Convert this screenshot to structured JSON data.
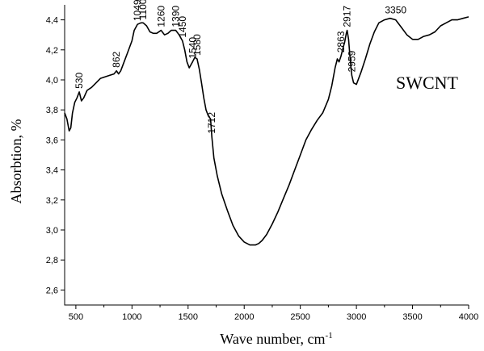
{
  "chart_data": {
    "type": "line",
    "xlabel": "Wave number, cm",
    "xlabel_sup": "-1",
    "ylabel": "Absorbtion, %",
    "xlim": [
      400,
      4000
    ],
    "ylim": [
      2.5,
      4.5
    ],
    "x_ticks": [
      500,
      1000,
      1500,
      2000,
      2500,
      3000,
      3500,
      4000
    ],
    "y_ticks": [
      "2,6",
      "2,8",
      "3,0",
      "3,2",
      "3,4",
      "3,6",
      "3,8",
      "4,0",
      "4,2",
      "4,4"
    ],
    "y_tick_values": [
      2.6,
      2.8,
      3.0,
      3.2,
      3.4,
      3.6,
      3.8,
      4.0,
      4.2,
      4.4
    ],
    "grid": false,
    "legend": "none",
    "series": [
      {
        "name": "SWCNT",
        "color": "#000000",
        "x": [
          400,
          420,
          440,
          455,
          470,
          490,
          510,
          530,
          550,
          570,
          600,
          640,
          680,
          720,
          760,
          800,
          840,
          862,
          880,
          900,
          930,
          960,
          1000,
          1020,
          1049,
          1080,
          1100,
          1130,
          1160,
          1190,
          1220,
          1260,
          1290,
          1320,
          1350,
          1390,
          1420,
          1450,
          1470,
          1490,
          1510,
          1540,
          1560,
          1580,
          1600,
          1620,
          1640,
          1660,
          1680,
          1700,
          1712,
          1730,
          1760,
          1800,
          1850,
          1900,
          1950,
          2000,
          2050,
          2100,
          2130,
          2160,
          2200,
          2250,
          2300,
          2350,
          2400,
          2450,
          2500,
          2550,
          2600,
          2650,
          2700,
          2750,
          2780,
          2810,
          2830,
          2845,
          2863,
          2880,
          2895,
          2910,
          2917,
          2930,
          2945,
          2959,
          2975,
          3000,
          3040,
          3080,
          3120,
          3160,
          3200,
          3250,
          3300,
          3350,
          3400,
          3450,
          3500,
          3550,
          3600,
          3650,
          3700,
          3750,
          3800,
          3850,
          3900,
          3950,
          4000
        ],
        "values": [
          3.78,
          3.74,
          3.66,
          3.68,
          3.78,
          3.85,
          3.88,
          3.92,
          3.86,
          3.88,
          3.93,
          3.95,
          3.98,
          4.01,
          4.02,
          4.03,
          4.04,
          4.06,
          4.04,
          4.06,
          4.12,
          4.18,
          4.26,
          4.33,
          4.37,
          4.38,
          4.38,
          4.36,
          4.32,
          4.31,
          4.31,
          4.33,
          4.3,
          4.31,
          4.33,
          4.33,
          4.3,
          4.26,
          4.2,
          4.12,
          4.08,
          4.12,
          4.15,
          4.14,
          4.07,
          3.98,
          3.88,
          3.8,
          3.76,
          3.74,
          3.62,
          3.48,
          3.36,
          3.24,
          3.13,
          3.03,
          2.96,
          2.92,
          2.9,
          2.9,
          2.91,
          2.93,
          2.97,
          3.04,
          3.12,
          3.21,
          3.3,
          3.4,
          3.5,
          3.6,
          3.67,
          3.73,
          3.78,
          3.87,
          3.96,
          4.08,
          4.14,
          4.12,
          4.16,
          4.21,
          4.25,
          4.31,
          4.33,
          4.27,
          4.13,
          4.03,
          3.98,
          3.97,
          4.05,
          4.14,
          4.24,
          4.32,
          4.38,
          4.4,
          4.41,
          4.4,
          4.35,
          4.3,
          4.27,
          4.27,
          4.29,
          4.3,
          4.32,
          4.36,
          4.38,
          4.4,
          4.4,
          4.41,
          4.42
        ]
      }
    ],
    "annotations": [
      {
        "text": "530",
        "x": 530,
        "y": 3.92,
        "rotated": true
      },
      {
        "text": "862",
        "x": 862,
        "y": 4.06,
        "rotated": true
      },
      {
        "text": "1049",
        "x": 1049,
        "y": 4.37,
        "rotated": true
      },
      {
        "text": "1100",
        "x": 1100,
        "y": 4.38,
        "rotated": true
      },
      {
        "text": "1260",
        "x": 1260,
        "y": 4.33,
        "rotated": true
      },
      {
        "text": "1390",
        "x": 1390,
        "y": 4.33,
        "rotated": true
      },
      {
        "text": "1450",
        "x": 1450,
        "y": 4.26,
        "rotated": true
      },
      {
        "text": "1540",
        "x": 1540,
        "y": 4.12,
        "rotated": true
      },
      {
        "text": "1580",
        "x": 1580,
        "y": 4.14,
        "rotated": true
      },
      {
        "text": "1712",
        "x": 1712,
        "y": 3.62,
        "rotated": true
      },
      {
        "text": "2863",
        "x": 2863,
        "y": 4.16,
        "rotated": true
      },
      {
        "text": "2917",
        "x": 2917,
        "y": 4.33,
        "rotated": true
      },
      {
        "text": "2959",
        "x": 2959,
        "y": 4.03,
        "rotated": true
      },
      {
        "text": "3350",
        "x": 3350,
        "y": 4.41,
        "rotated": false
      }
    ],
    "series_label": "SWCNT"
  }
}
